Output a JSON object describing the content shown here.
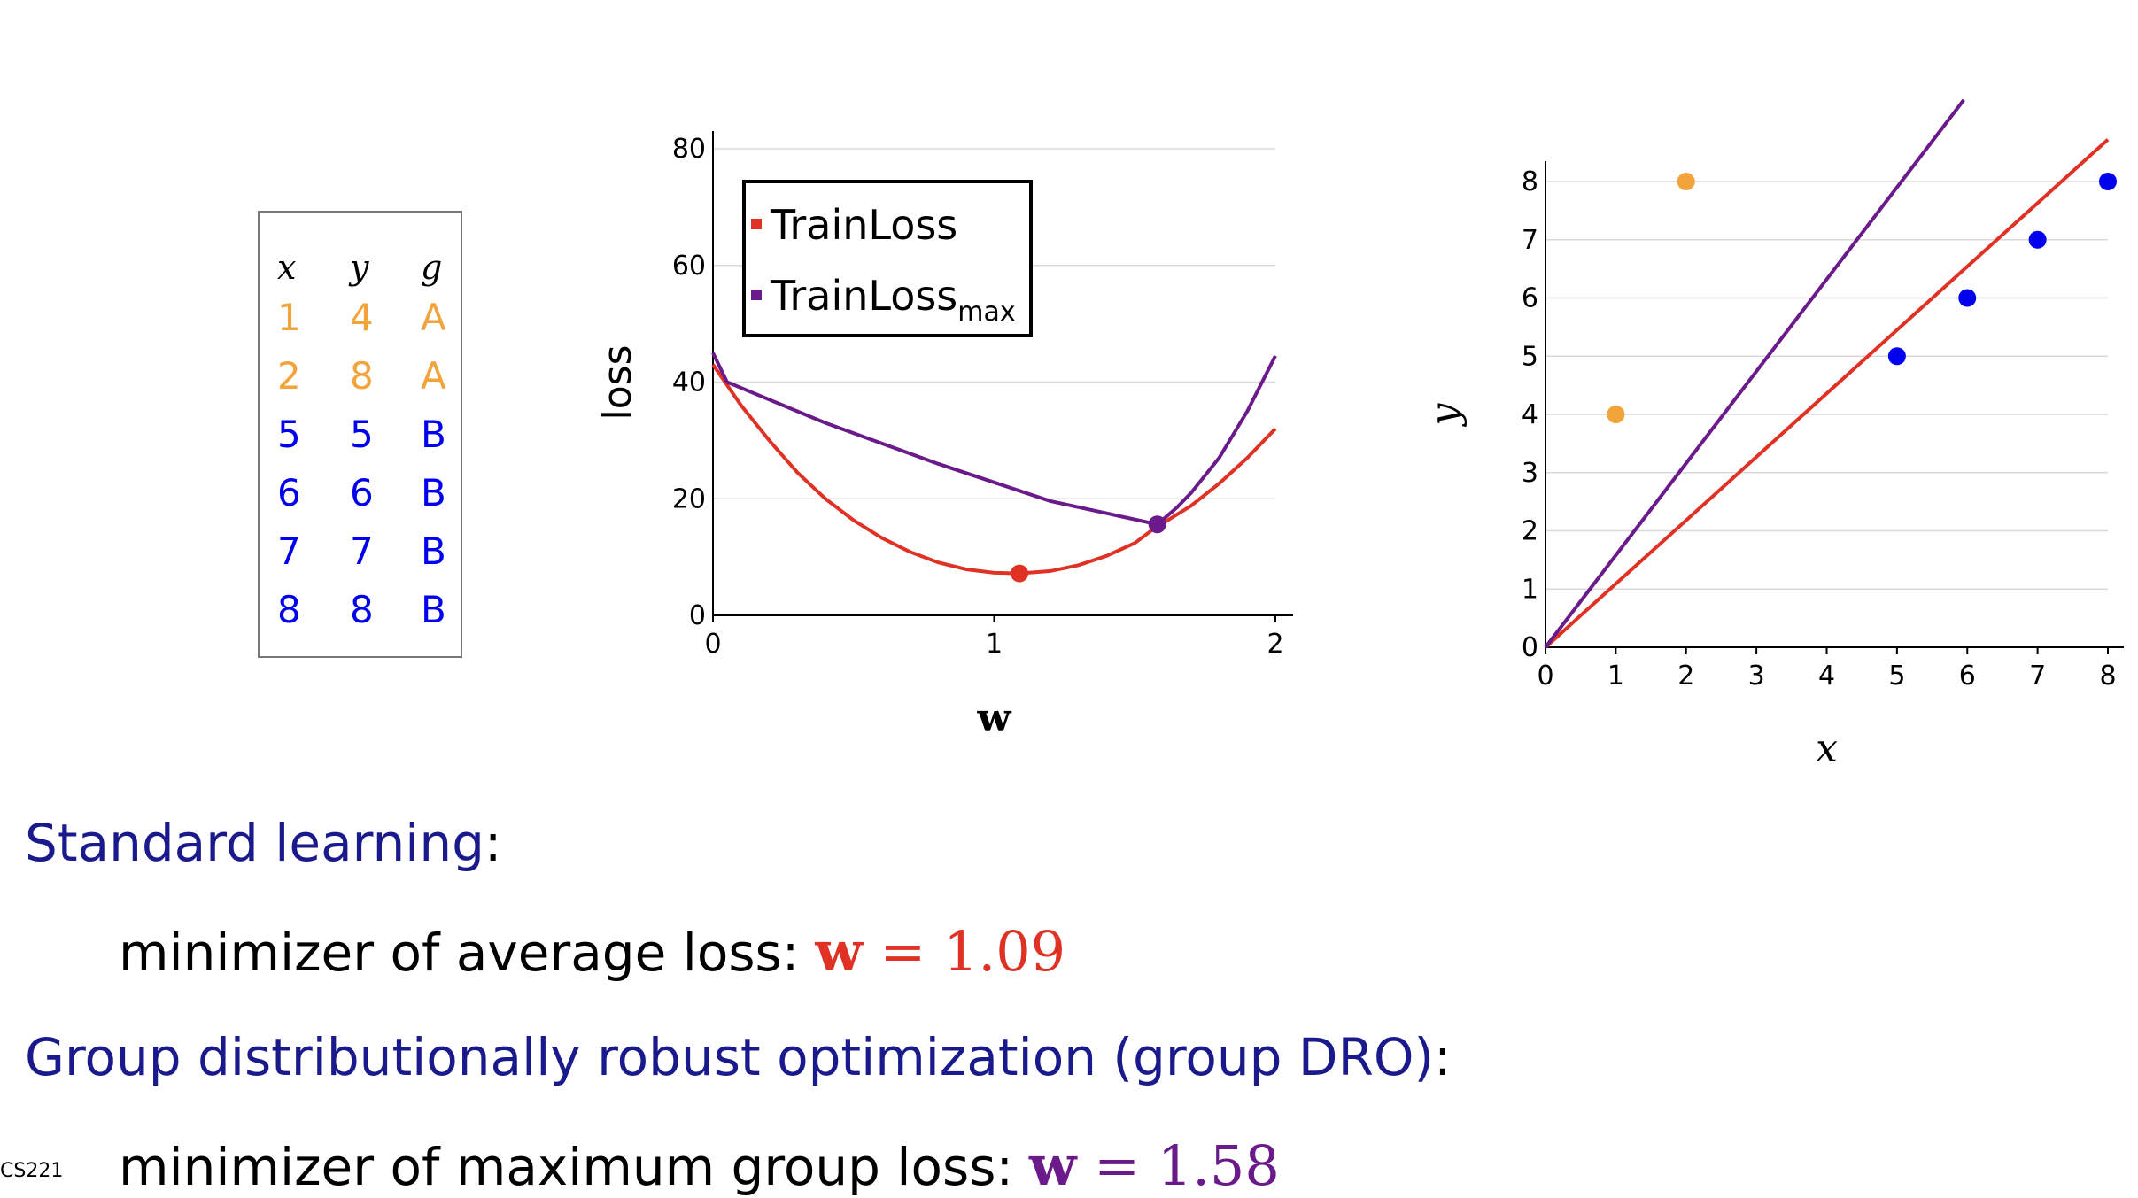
{
  "slide": {
    "title": "",
    "course": "CS221"
  },
  "table": {
    "headers": [
      "x",
      "y",
      "g"
    ],
    "rows": [
      {
        "x": "1",
        "y": "4",
        "g": "A",
        "color": "#f2a33a"
      },
      {
        "x": "2",
        "y": "8",
        "g": "A",
        "color": "#f2a33a"
      },
      {
        "x": "5",
        "y": "5",
        "g": "B",
        "color": "#0000ee"
      },
      {
        "x": "6",
        "y": "6",
        "g": "B",
        "color": "#0000ee"
      },
      {
        "x": "7",
        "y": "7",
        "g": "B",
        "color": "#0000ee"
      },
      {
        "x": "8",
        "y": "8",
        "g": "B",
        "color": "#0000ee"
      }
    ]
  },
  "text": {
    "standard_heading": "Standard learning",
    "standard_line": "minimizer of average loss:",
    "standard_value": "1.09",
    "dro_heading": "Group distributionally robust optimization (group DRO)",
    "dro_line": "minimizer of maximum group loss:",
    "dro_value": "1.58",
    "colon": ":",
    "math_var": "w",
    "equals": "="
  },
  "colors": {
    "red": "#e03224",
    "purple": "#6a1a8a",
    "orange": "#f2a33a",
    "blue": "#0000ee",
    "navy": "#1a1a8c"
  },
  "chart_data": [
    {
      "type": "line",
      "xlabel": "w",
      "ylabel": "loss",
      "xlim": [
        0,
        2
      ],
      "ylim": [
        0,
        80
      ],
      "xticks": [
        0,
        1,
        2
      ],
      "yticks": [
        0,
        20,
        40,
        60,
        80
      ],
      "grid": true,
      "legend_position": "top-left",
      "series": [
        {
          "name": "TrainLoss",
          "color": "#e03224",
          "x": [
            0,
            0.1,
            0.2,
            0.3,
            0.4,
            0.5,
            0.6,
            0.7,
            0.8,
            0.9,
            1.0,
            1.09,
            1.2,
            1.3,
            1.4,
            1.5,
            1.58,
            1.6,
            1.7,
            1.8,
            1.9,
            2.0
          ],
          "y": [
            43,
            36,
            30,
            24.5,
            20,
            16.3,
            13.3,
            10.9,
            9.1,
            7.9,
            7.3,
            7.2,
            7.6,
            8.6,
            10.2,
            12.4,
            15.3,
            15.8,
            18.8,
            22.6,
            27.0,
            32.0
          ]
        },
        {
          "name": "TrainLoss",
          "name_subscript": "max",
          "color": "#6a1a8a",
          "x": [
            0,
            0.05,
            0.2,
            0.4,
            0.6,
            0.8,
            1.0,
            1.2,
            1.4,
            1.58,
            1.65,
            1.7,
            1.8,
            1.9,
            2.0
          ],
          "y": [
            45,
            40,
            37,
            33,
            29.5,
            26,
            22.8,
            19.6,
            17.5,
            15.6,
            18.5,
            21,
            27,
            35,
            44.5
          ]
        }
      ],
      "markers": [
        {
          "x": 1.09,
          "y": 7.2,
          "color": "#e03224"
        },
        {
          "x": 1.58,
          "y": 15.6,
          "color": "#6a1a8a"
        }
      ]
    },
    {
      "type": "scatter",
      "xlabel": "x",
      "ylabel": "y",
      "xlim": [
        0,
        8
      ],
      "ylim": [
        0,
        8
      ],
      "xticks": [
        0,
        1,
        2,
        3,
        4,
        5,
        6,
        7,
        8
      ],
      "yticks": [
        0,
        1,
        2,
        3,
        4,
        5,
        6,
        7,
        8
      ],
      "grid": true,
      "points": [
        {
          "x": 1,
          "y": 4,
          "group": "A",
          "color": "#f2a33a"
        },
        {
          "x": 2,
          "y": 8,
          "group": "A",
          "color": "#f2a33a"
        },
        {
          "x": 5,
          "y": 5,
          "group": "B",
          "color": "#0000ee"
        },
        {
          "x": 6,
          "y": 6,
          "group": "B",
          "color": "#0000ee"
        },
        {
          "x": 7,
          "y": 7,
          "group": "B",
          "color": "#0000ee"
        },
        {
          "x": 8,
          "y": 8,
          "group": "B",
          "color": "#0000ee"
        }
      ],
      "lines": [
        {
          "slope": 1.09,
          "color": "#e03224",
          "x_end": 8
        },
        {
          "slope": 1.58,
          "color": "#6a1a8a",
          "x_end": 5.95
        }
      ]
    }
  ]
}
